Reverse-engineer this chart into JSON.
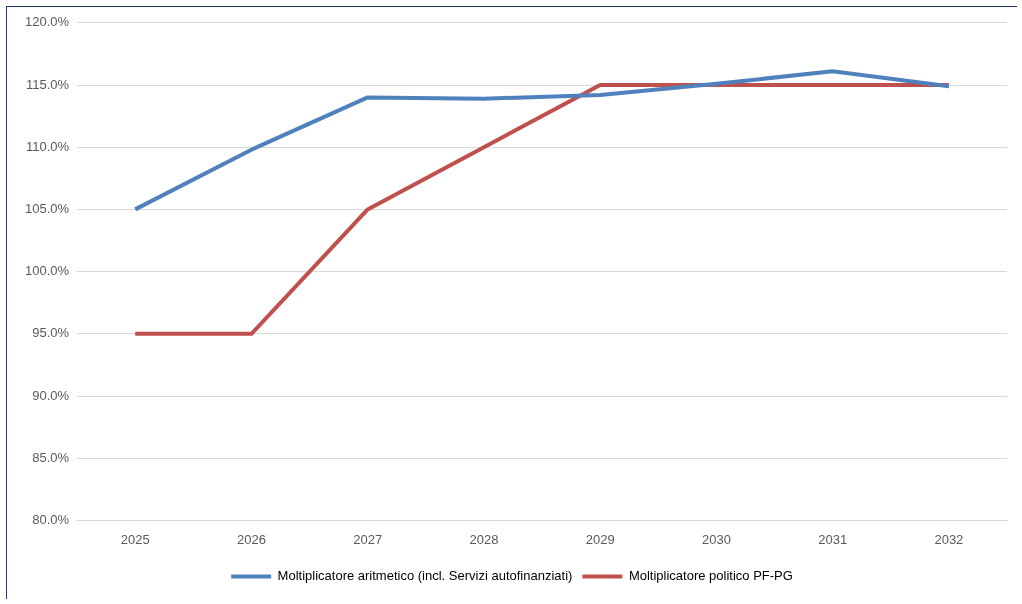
{
  "chart_data": {
    "type": "line",
    "categories": [
      "2025",
      "2026",
      "2027",
      "2028",
      "2029",
      "2030",
      "2031",
      "2032"
    ],
    "series": [
      {
        "name": "Moltiplicatore aritmetico (incl. Servizi autofinanziati)",
        "color": "#4f81bd",
        "values": [
          105,
          109.8,
          114,
          113.9,
          114.2,
          115.1,
          116.1,
          114.9
        ]
      },
      {
        "name": "Moltiplicatore politico PF-PG",
        "color": "#c0504d",
        "values": [
          95,
          95,
          105,
          110,
          115,
          115,
          115,
          115
        ]
      }
    ],
    "ylim": [
      80,
      120
    ],
    "yticks": [
      {
        "value": 80,
        "label": "80.0%"
      },
      {
        "value": 85,
        "label": "85.0%"
      },
      {
        "value": 90,
        "label": "90.0%"
      },
      {
        "value": 95,
        "label": "95.0%"
      },
      {
        "value": 100,
        "label": "100.0%"
      },
      {
        "value": 105,
        "label": "105.0%"
      },
      {
        "value": 110,
        "label": "110.0%"
      },
      {
        "value": 115,
        "label": "115.0%"
      },
      {
        "value": 120,
        "label": "120.0%"
      }
    ],
    "grid": "y",
    "legend": "bottom",
    "marker": "none",
    "line_style": "solid"
  }
}
